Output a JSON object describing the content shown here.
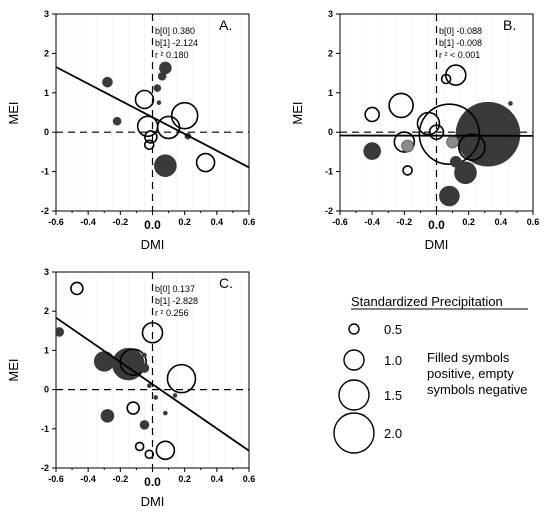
{
  "chart_data": [
    {
      "type": "scatter",
      "panel_label": "A.",
      "xlabel": "DMI",
      "ylabel": "MEI",
      "xlim": [
        -0.6,
        0.6
      ],
      "ylim": [
        -2,
        3
      ],
      "xticks": [
        "-0.6",
        "-0.4",
        "-0.2",
        "0.0",
        "0.2",
        "0.4",
        "0.6"
      ],
      "yticks": [
        "-2",
        "-1",
        "0",
        "1",
        "2",
        "3"
      ],
      "stats": [
        "b[0]   0.380",
        "b[1]  -2.124",
        "r ²   0.180"
      ],
      "fit": {
        "intercept": 0.38,
        "slope": -2.124
      },
      "points": [
        {
          "x": -0.28,
          "y": 1.27,
          "size": 0.5,
          "filled": true
        },
        {
          "x": -0.22,
          "y": 0.28,
          "size": 0.4,
          "filled": true
        },
        {
          "x": -0.05,
          "y": 0.83,
          "size": 0.9,
          "filled": false
        },
        {
          "x": -0.03,
          "y": 0.15,
          "size": 1.0,
          "filled": false
        },
        {
          "x": -0.01,
          "y": -0.12,
          "size": 0.6,
          "filled": false
        },
        {
          "x": -0.02,
          "y": -0.32,
          "size": 0.45,
          "filled": false
        },
        {
          "x": 0.03,
          "y": 1.12,
          "size": 0.35,
          "filled": true
        },
        {
          "x": 0.06,
          "y": 1.42,
          "size": 0.4,
          "filled": true
        },
        {
          "x": 0.08,
          "y": 1.63,
          "size": 0.6,
          "filled": true
        },
        {
          "x": 0.04,
          "y": 0.75,
          "size": 0.2,
          "filled": true
        },
        {
          "x": 0.1,
          "y": 0.12,
          "size": 1.1,
          "filled": false
        },
        {
          "x": 0.08,
          "y": -0.85,
          "size": 1.1,
          "filled": true
        },
        {
          "x": 0.2,
          "y": 0.42,
          "size": 1.3,
          "filled": false
        },
        {
          "x": 0.22,
          "y": -0.1,
          "size": 0.3,
          "filled": true
        },
        {
          "x": 0.33,
          "y": -0.77,
          "size": 0.9,
          "filled": false
        }
      ]
    },
    {
      "type": "scatter",
      "panel_label": "B.",
      "xlabel": "DMI",
      "ylabel": "MEI",
      "xlim": [
        -0.6,
        0.6
      ],
      "ylim": [
        -2,
        3
      ],
      "xticks": [
        "-0.6",
        "-0.4",
        "-0.2",
        "0.0",
        "0.2",
        "0.4",
        "0.6"
      ],
      "yticks": [
        "-2",
        "-1",
        "0",
        "1",
        "2",
        "3"
      ],
      "stats": [
        "b[0]  -0.088",
        "b[1]  -0.008",
        "r ² < 0.001"
      ],
      "fit": {
        "intercept": -0.088,
        "slope": -0.008
      },
      "points": [
        {
          "x": -0.4,
          "y": 0.45,
          "size": 0.7,
          "filled": false
        },
        {
          "x": -0.4,
          "y": -0.48,
          "size": 0.85,
          "filled": true
        },
        {
          "x": -0.22,
          "y": 0.68,
          "size": 1.2,
          "filled": false
        },
        {
          "x": -0.2,
          "y": -0.25,
          "size": 1.0,
          "filled": false
        },
        {
          "x": -0.18,
          "y": -0.35,
          "size": 0.6,
          "filled": true
        },
        {
          "x": -0.18,
          "y": -0.97,
          "size": 0.45,
          "filled": false
        },
        {
          "x": -0.05,
          "y": 0.22,
          "size": 1.1,
          "filled": false
        },
        {
          "x": 0.0,
          "y": 0.0,
          "size": 0.7,
          "filled": false
        },
        {
          "x": 0.06,
          "y": 1.35,
          "size": 0.45,
          "filled": false
        },
        {
          "x": 0.12,
          "y": 1.45,
          "size": 1.0,
          "filled": false
        },
        {
          "x": 0.08,
          "y": -0.05,
          "size": 3.0,
          "filled": false
        },
        {
          "x": 0.1,
          "y": -0.25,
          "size": 0.6,
          "filled": true
        },
        {
          "x": 0.12,
          "y": -0.75,
          "size": 0.55,
          "filled": true
        },
        {
          "x": 0.18,
          "y": -1.03,
          "size": 1.1,
          "filled": true
        },
        {
          "x": 0.22,
          "y": -0.38,
          "size": 1.3,
          "filled": false
        },
        {
          "x": 0.08,
          "y": -1.62,
          "size": 1.0,
          "filled": true
        },
        {
          "x": 0.32,
          "y": -0.05,
          "size": 3.2,
          "filled": true
        },
        {
          "x": 0.46,
          "y": 0.73,
          "size": 0.2,
          "filled": true
        }
      ]
    },
    {
      "type": "scatter",
      "panel_label": "C.",
      "xlabel": "DMI",
      "ylabel": "MEI",
      "xlim": [
        -0.6,
        0.6
      ],
      "ylim": [
        -2,
        3
      ],
      "xticks": [
        "-0.6",
        "-0.4",
        "-0.2",
        "0.0",
        "0.2",
        "0.4",
        "0.6"
      ],
      "yticks": [
        "-2",
        "-1",
        "0",
        "1",
        "2",
        "3"
      ],
      "stats": [
        "b[0]   0.137",
        "b[1]  -2.828",
        "r ²   0.256"
      ],
      "fit": {
        "intercept": 0.137,
        "slope": -2.828
      },
      "points": [
        {
          "x": -0.58,
          "y": 1.47,
          "size": 0.45,
          "filled": true
        },
        {
          "x": -0.47,
          "y": 2.58,
          "size": 0.6,
          "filled": false
        },
        {
          "x": -0.3,
          "y": 0.72,
          "size": 1.0,
          "filled": true
        },
        {
          "x": -0.28,
          "y": -0.67,
          "size": 0.65,
          "filled": true
        },
        {
          "x": -0.15,
          "y": 0.65,
          "size": 1.6,
          "filled": true
        },
        {
          "x": -0.12,
          "y": 0.7,
          "size": 1.3,
          "filled": false
        },
        {
          "x": -0.05,
          "y": 0.55,
          "size": 0.45,
          "filled": true
        },
        {
          "x": -0.05,
          "y": 0.88,
          "size": 0.2,
          "filled": true
        },
        {
          "x": -0.12,
          "y": -0.47,
          "size": 0.6,
          "filled": false
        },
        {
          "x": -0.02,
          "y": 0.1,
          "size": 0.2,
          "filled": true
        },
        {
          "x": -0.05,
          "y": -0.9,
          "size": 0.45,
          "filled": true
        },
        {
          "x": 0.0,
          "y": 1.45,
          "size": 1.0,
          "filled": false
        },
        {
          "x": 0.02,
          "y": -0.2,
          "size": 0.2,
          "filled": true
        },
        {
          "x": 0.18,
          "y": 0.28,
          "size": 1.4,
          "filled": false
        },
        {
          "x": 0.14,
          "y": -0.15,
          "size": 0.2,
          "filled": true
        },
        {
          "x": 0.08,
          "y": -1.55,
          "size": 0.9,
          "filled": false
        },
        {
          "x": -0.08,
          "y": -1.45,
          "size": 0.4,
          "filled": false
        },
        {
          "x": -0.02,
          "y": -1.65,
          "size": 0.4,
          "filled": false
        },
        {
          "x": 0.08,
          "y": -0.6,
          "size": 0.2,
          "filled": true
        }
      ]
    }
  ],
  "legend": {
    "title": "Standardized Precipitation",
    "entries": [
      {
        "label": "0.5",
        "size": 0.5
      },
      {
        "label": "1.0",
        "size": 1.0
      },
      {
        "label": "1.5",
        "size": 1.5
      },
      {
        "label": "2.0",
        "size": 2.0
      }
    ],
    "note_lines": [
      "Filled symbols",
      "positive, empty",
      "symbols negative"
    ]
  },
  "colors": {
    "axis": "#000000",
    "filled_symbol": "#3a3a3a",
    "filled_symbol_light": "#8a8a8a",
    "empty_symbol_fill": "#ffffff",
    "grid": "#cfcfcf"
  }
}
